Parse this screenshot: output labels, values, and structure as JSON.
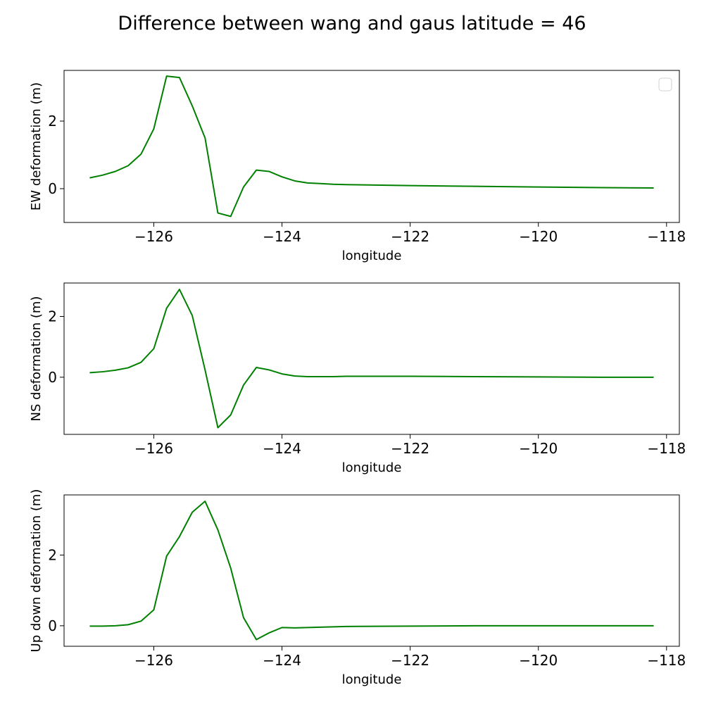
{
  "figure": {
    "title": "Difference between wang and gaus latitude = 46"
  },
  "chart_data": [
    {
      "type": "line",
      "xlabel": "longitude",
      "ylabel": "EW deformation (m)",
      "xlim": [
        -127.4,
        -117.8
      ],
      "ylim": [
        -1.0,
        3.5
      ],
      "xticks": [
        -126,
        -124,
        -122,
        -120,
        -118
      ],
      "xtick_labels": [
        "−126",
        "−124",
        "−122",
        "−120",
        "−118"
      ],
      "yticks": [
        0,
        2
      ],
      "ytick_labels": [
        "0",
        "2"
      ],
      "legend": {
        "placement": "upper right",
        "entries": []
      },
      "grid": false,
      "series": [
        {
          "color": "#008000",
          "x": [
            -127.0,
            -126.8,
            -126.6,
            -126.4,
            -126.2,
            -126.0,
            -125.8,
            -125.6,
            -125.4,
            -125.2,
            -125.0,
            -124.8,
            -124.6,
            -124.4,
            -124.2,
            -124.0,
            -123.8,
            -123.6,
            -123.4,
            -123.2,
            -123.0,
            -122.0,
            -121.0,
            -120.0,
            -119.0,
            -118.2
          ],
          "y": [
            0.32,
            0.4,
            0.51,
            0.68,
            1.02,
            1.77,
            3.33,
            3.29,
            2.45,
            1.5,
            -0.72,
            -0.82,
            0.05,
            0.55,
            0.51,
            0.35,
            0.23,
            0.17,
            0.15,
            0.13,
            0.12,
            0.09,
            0.07,
            0.05,
            0.03,
            0.02
          ]
        }
      ]
    },
    {
      "type": "line",
      "xlabel": "longitude",
      "ylabel": "NS deformation (m)",
      "xlim": [
        -127.4,
        -117.8
      ],
      "ylim": [
        -1.88,
        3.1
      ],
      "xticks": [
        -126,
        -124,
        -122,
        -120,
        -118
      ],
      "xtick_labels": [
        "−126",
        "−124",
        "−122",
        "−120",
        "−118"
      ],
      "yticks": [
        0,
        2
      ],
      "ytick_labels": [
        "0",
        "2"
      ],
      "grid": false,
      "series": [
        {
          "color": "#008000",
          "x": [
            -127.0,
            -126.8,
            -126.6,
            -126.4,
            -126.2,
            -126.0,
            -125.8,
            -125.6,
            -125.4,
            -125.2,
            -125.0,
            -124.8,
            -124.6,
            -124.4,
            -124.2,
            -124.0,
            -123.8,
            -123.6,
            -123.4,
            -123.2,
            -123.0,
            -122.0,
            -121.0,
            -120.0,
            -119.0,
            -118.2
          ],
          "y": [
            0.15,
            0.18,
            0.23,
            0.31,
            0.49,
            0.94,
            2.27,
            2.89,
            2.03,
            0.24,
            -1.66,
            -1.24,
            -0.26,
            0.32,
            0.24,
            0.11,
            0.04,
            0.02,
            0.02,
            0.02,
            0.03,
            0.03,
            0.02,
            0.01,
            0.0,
            0.0
          ]
        }
      ]
    },
    {
      "type": "line",
      "xlabel": "longitude",
      "ylabel": "Up down deformation (m)",
      "xlim": [
        -127.4,
        -117.8
      ],
      "ylim": [
        -0.58,
        3.7
      ],
      "xticks": [
        -126,
        -124,
        -122,
        -120,
        -118
      ],
      "xtick_labels": [
        "−126",
        "−124",
        "−122",
        "−120",
        "−118"
      ],
      "yticks": [
        0,
        2
      ],
      "ytick_labels": [
        "0",
        "2"
      ],
      "grid": false,
      "series": [
        {
          "color": "#008000",
          "x": [
            -127.0,
            -126.8,
            -126.6,
            -126.4,
            -126.2,
            -126.0,
            -125.8,
            -125.6,
            -125.4,
            -125.2,
            -125.0,
            -124.8,
            -124.6,
            -124.4,
            -124.2,
            -124.0,
            -123.8,
            -123.6,
            -123.4,
            -123.2,
            -123.0,
            -122.0,
            -121.0,
            -120.0,
            -119.0,
            -118.2
          ],
          "y": [
            -0.01,
            -0.01,
            0.0,
            0.03,
            0.13,
            0.45,
            1.97,
            2.52,
            3.21,
            3.52,
            2.71,
            1.63,
            0.23,
            -0.39,
            -0.2,
            -0.05,
            -0.06,
            -0.05,
            -0.04,
            -0.03,
            -0.02,
            -0.01,
            0.0,
            0.0,
            0.0,
            0.0
          ]
        }
      ]
    }
  ]
}
